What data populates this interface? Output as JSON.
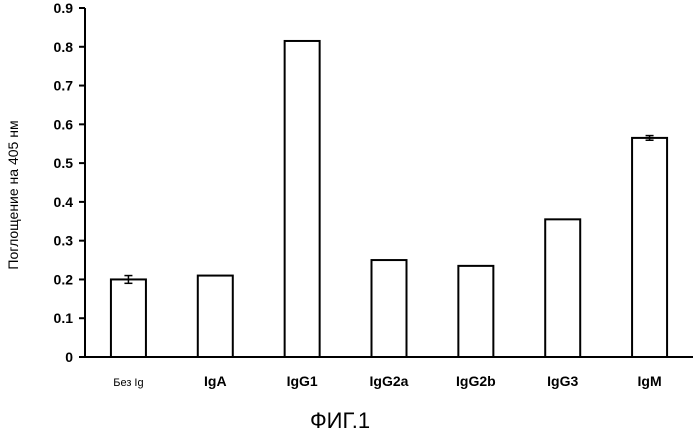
{
  "chart_data": {
    "type": "bar",
    "categories": [
      "Без Ig",
      "IgA",
      "IgG1",
      "IgG2a",
      "IgG2b",
      "IgG3",
      "IgM"
    ],
    "values": [
      0.2,
      0.21,
      0.815,
      0.25,
      0.235,
      0.355,
      0.565
    ],
    "error": [
      0.01,
      0.0,
      0.0,
      0.0,
      0.0,
      0.0,
      0.006
    ],
    "ylabel": "Поглощение на 405 нм",
    "ylim": [
      0,
      0.9
    ],
    "yticks": [
      "0",
      "0.1",
      "0.2",
      "0.3",
      "0.4",
      "0.5",
      "0.6",
      "0.7",
      "0.8",
      "0.9"
    ],
    "grid": false,
    "bar_fill": "#ffffff",
    "bar_stroke": "#000000"
  },
  "figure": {
    "caption": "ФИГ.1"
  }
}
